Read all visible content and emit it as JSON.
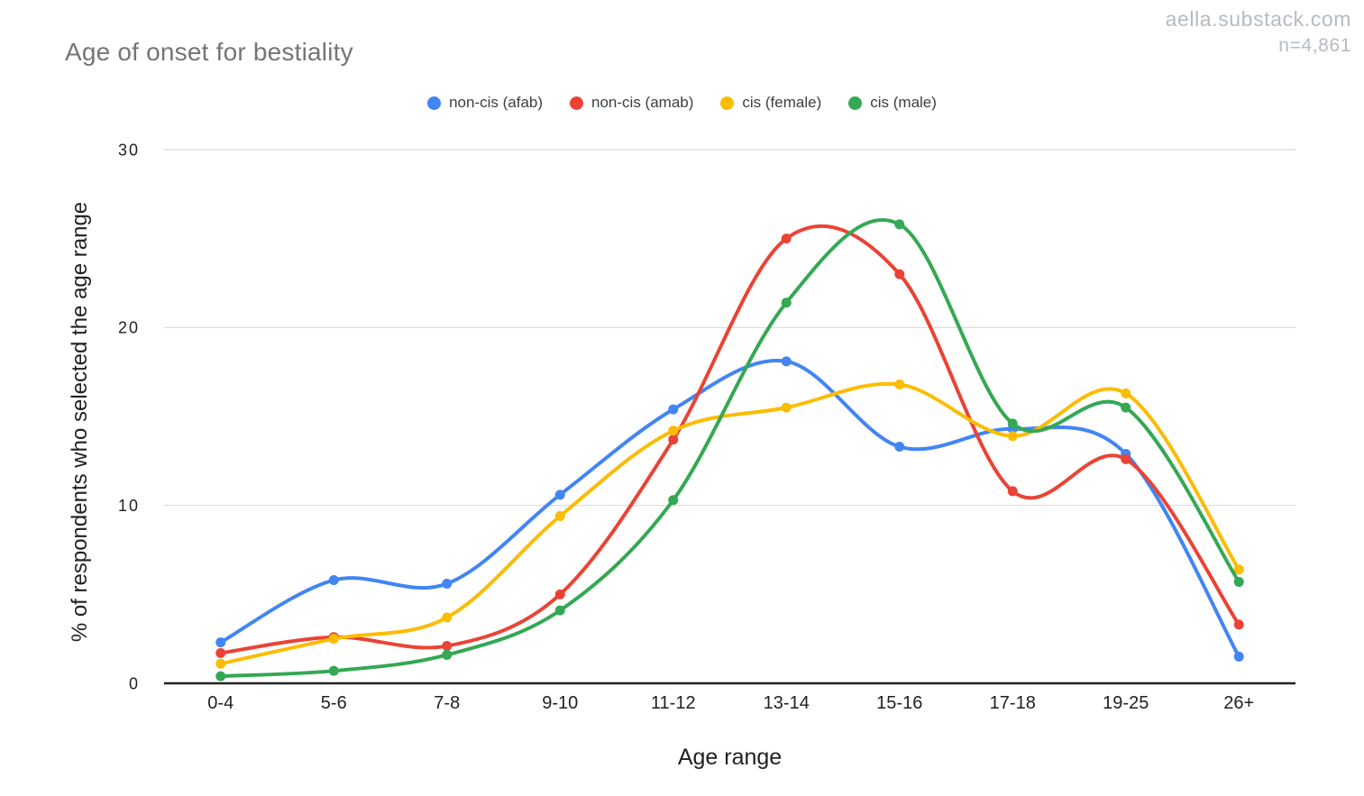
{
  "page": {
    "watermark_site": "aella.substack.com",
    "sample_size_label": "n=4,861"
  },
  "chart_data": {
    "type": "line",
    "smooth": true,
    "title": "Age of onset for bestiality",
    "xlabel": "Age range",
    "ylabel": "% of respondents who selected the age range",
    "categories": [
      "0-4",
      "5-6",
      "7-8",
      "9-10",
      "11-12",
      "13-14",
      "15-16",
      "17-18",
      "19-25",
      "26+"
    ],
    "series": [
      {
        "name": "non-cis (afab)",
        "color": "#4285F4",
        "values": [
          2.3,
          5.8,
          5.6,
          10.6,
          15.4,
          18.1,
          13.3,
          14.3,
          12.9,
          1.5
        ]
      },
      {
        "name": "non-cis (amab)",
        "color": "#EA4335",
        "values": [
          1.7,
          2.6,
          2.1,
          5.0,
          13.7,
          25.0,
          23.0,
          10.8,
          12.6,
          3.3
        ]
      },
      {
        "name": "cis (female)",
        "color": "#FBBC04",
        "values": [
          1.1,
          2.5,
          3.7,
          9.4,
          14.2,
          15.5,
          16.8,
          13.9,
          16.3,
          6.4
        ]
      },
      {
        "name": "cis (male)",
        "color": "#34A853",
        "values": [
          0.4,
          0.7,
          1.6,
          4.1,
          10.3,
          21.4,
          25.8,
          14.6,
          15.5,
          5.7
        ]
      }
    ],
    "ylim": [
      0,
      30
    ],
    "yticks": [
      0,
      10,
      20,
      30
    ],
    "legend_position": "top",
    "grid": "horizontal",
    "styles": {
      "background": "#ffffff",
      "grid_color": "#d9d9d9",
      "axis_color": "#212121",
      "title_color": "#757575",
      "tick_label_color": "#202124",
      "legend_text_color": "#3c4043",
      "watermark_color": "#b4bbc2"
    }
  }
}
